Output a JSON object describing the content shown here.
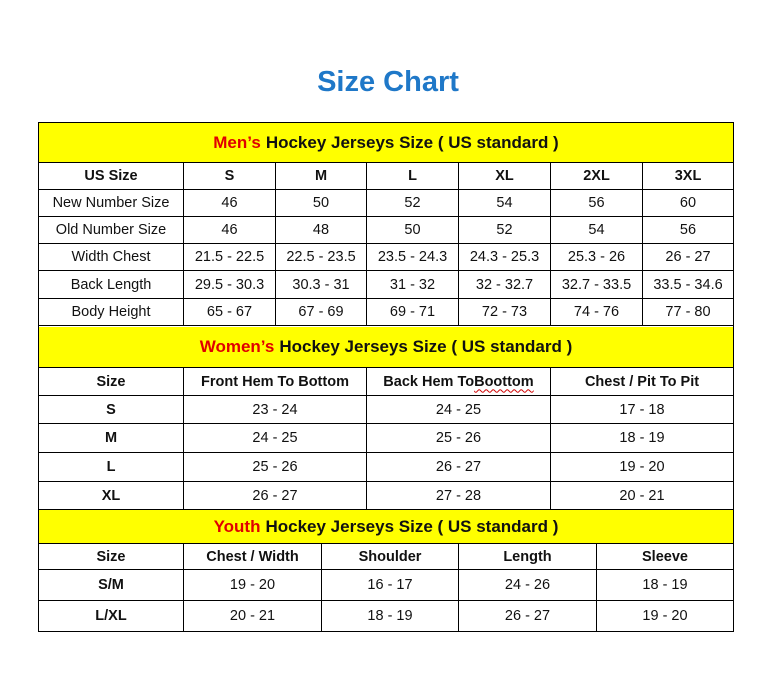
{
  "title": "Size Chart",
  "colors": {
    "title": "#1f78c8",
    "banner_bg": "#ffff00",
    "banner_highlight": "#e00000"
  },
  "sections": [
    {
      "id": "men",
      "highlight": "Men’s",
      "heading": "Hockey Jerseys Size ( US standard )",
      "columns": [
        "US Size",
        "S",
        "M",
        "L",
        "XL",
        "2XL",
        "3XL"
      ],
      "rows": [
        [
          "New Number Size",
          "46",
          "50",
          "52",
          "54",
          "56",
          "60"
        ],
        [
          "Old Number Size",
          "46",
          "48",
          "50",
          "52",
          "54",
          "56"
        ],
        [
          "Width Chest",
          "21.5 - 22.5",
          "22.5 - 23.5",
          "23.5 - 24.3",
          "24.3 - 25.3",
          "25.3 - 26",
          "26 - 27"
        ],
        [
          "Back Length",
          "29.5 - 30.3",
          "30.3 - 31",
          "31 - 32",
          "32 - 32.7",
          "32.7 - 33.5",
          "33.5 - 34.6"
        ],
        [
          "Body Height",
          "65 - 67",
          "67 - 69",
          "69 - 71",
          "72 - 73",
          "74 - 76",
          "77 - 80"
        ]
      ]
    },
    {
      "id": "women",
      "highlight": "Women’s",
      "heading": "Hockey Jerseys Size ( US standard )",
      "columns": [
        "Size",
        "Front Hem To Bottom",
        "Back Hem To Boottom",
        "Chest / Pit To Pit"
      ],
      "rows": [
        [
          "S",
          "23 - 24",
          "24 - 25",
          "17 - 18"
        ],
        [
          "M",
          "24 - 25",
          "25 - 26",
          "18 - 19"
        ],
        [
          "L",
          "25 - 26",
          "26 - 27",
          "19 - 20"
        ],
        [
          "XL",
          "26 - 27",
          "27 - 28",
          "20 - 21"
        ]
      ]
    },
    {
      "id": "youth",
      "highlight": "Youth",
      "heading": "Hockey Jerseys Size ( US standard )",
      "columns": [
        "Size",
        "Chest / Width",
        "Shoulder",
        "Length",
        "Sleeve"
      ],
      "rows": [
        [
          "S/M",
          "19 - 20",
          "16 - 17",
          "24 - 26",
          "18 - 19"
        ],
        [
          "L/XL",
          "20 - 21",
          "18 - 19",
          "26 - 27",
          "19 - 20"
        ]
      ]
    }
  ]
}
